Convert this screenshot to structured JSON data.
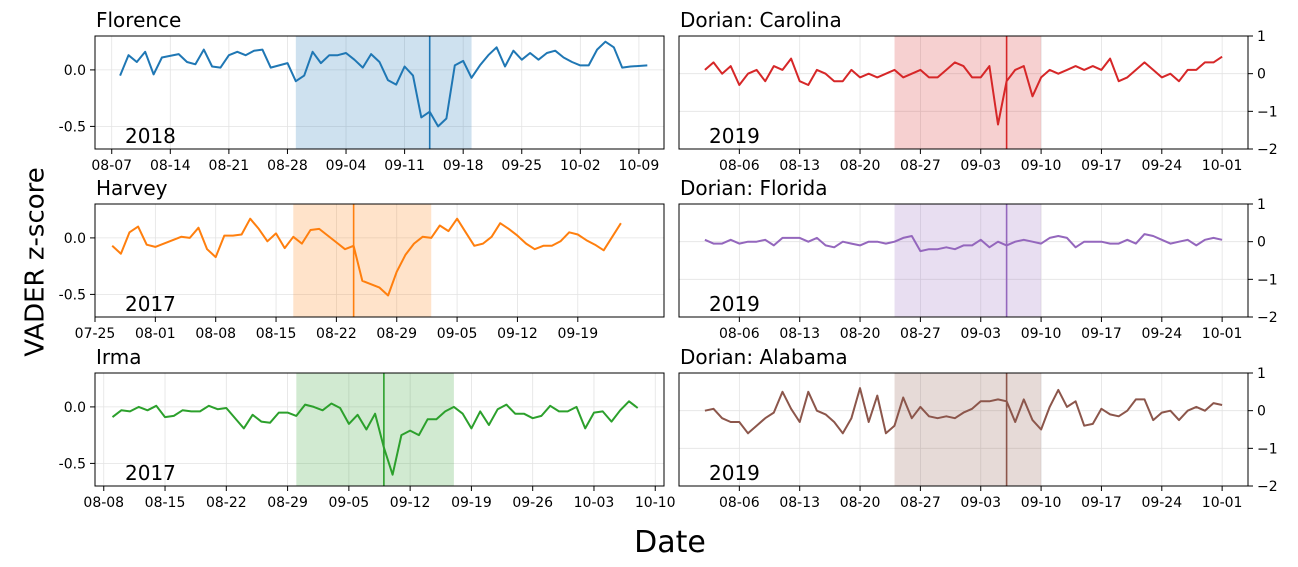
{
  "figure": {
    "xlabel": "Date",
    "ylabel": "VADER z-score"
  },
  "colors": {
    "blue": "#1f77b4",
    "orange": "#ff7f0e",
    "green": "#2ca02c",
    "red": "#d62728",
    "purple": "#9467bd",
    "brown": "#8c564b"
  },
  "chart_data": [
    {
      "type": "line",
      "title": "Florence",
      "year_label": "2018",
      "color": "#1f77b4",
      "ylim": [
        -0.7,
        0.3
      ],
      "yticks": [
        0.0,
        -0.5
      ],
      "ytick_labels": [
        "0.0",
        "-0.5"
      ],
      "yaxis_side": "left",
      "xlim": [
        "2018-08-05",
        "2018-10-12"
      ],
      "xticks": [
        "2018-08-07",
        "2018-08-14",
        "2018-08-21",
        "2018-08-28",
        "2018-09-04",
        "2018-09-11",
        "2018-09-18",
        "2018-09-25",
        "2018-10-02",
        "2018-10-09"
      ],
      "xtick_labels": [
        "08-07",
        "08-14",
        "08-21",
        "08-28",
        "09-04",
        "09-11",
        "09-18",
        "09-25",
        "10-02",
        "10-09"
      ],
      "span": [
        "2018-08-29",
        "2018-09-19"
      ],
      "event": "2018-09-14",
      "x": [
        "2018-08-08",
        "2018-08-09",
        "2018-08-10",
        "2018-08-11",
        "2018-08-12",
        "2018-08-13",
        "2018-08-15",
        "2018-08-16",
        "2018-08-17",
        "2018-08-18",
        "2018-08-19",
        "2018-08-20",
        "2018-08-21",
        "2018-08-22",
        "2018-08-23",
        "2018-08-24",
        "2018-08-25",
        "2018-08-26",
        "2018-08-27",
        "2018-08-28",
        "2018-08-29",
        "2018-08-30",
        "2018-08-31",
        "2018-09-01",
        "2018-09-02",
        "2018-09-03",
        "2018-09-04",
        "2018-09-05",
        "2018-09-06",
        "2018-09-07",
        "2018-09-08",
        "2018-09-09",
        "2018-09-10",
        "2018-09-11",
        "2018-09-12",
        "2018-09-13",
        "2018-09-14",
        "2018-09-15",
        "2018-09-16",
        "2018-09-17",
        "2018-09-18",
        "2018-09-19",
        "2018-09-20",
        "2018-09-21",
        "2018-09-22",
        "2018-09-23",
        "2018-09-24",
        "2018-09-25",
        "2018-09-26",
        "2018-09-27",
        "2018-09-28",
        "2018-09-29",
        "2018-09-30",
        "2018-10-01",
        "2018-10-02",
        "2018-10-03",
        "2018-10-04",
        "2018-10-05",
        "2018-10-06",
        "2018-10-07",
        "2018-10-08",
        "2018-10-10"
      ],
      "y": [
        -0.05,
        0.13,
        0.07,
        0.16,
        -0.04,
        0.11,
        0.14,
        0.07,
        0.05,
        0.18,
        0.03,
        0.02,
        0.13,
        0.16,
        0.13,
        0.17,
        0.18,
        0.02,
        0.04,
        0.06,
        -0.1,
        -0.05,
        0.16,
        0.06,
        0.13,
        0.13,
        0.15,
        0.09,
        0.02,
        0.14,
        0.07,
        -0.09,
        -0.13,
        0.03,
        -0.05,
        -0.42,
        -0.37,
        -0.5,
        -0.43,
        0.04,
        0.08,
        -0.07,
        0.04,
        0.13,
        0.2,
        0.03,
        0.17,
        0.09,
        0.15,
        0.09,
        0.15,
        0.17,
        0.11,
        0.07,
        0.04,
        0.04,
        0.18,
        0.25,
        0.2,
        0.02,
        0.03,
        0.04
      ]
    },
    {
      "type": "line",
      "title": "Harvey",
      "year_label": "2017",
      "color": "#ff7f0e",
      "ylim": [
        -0.7,
        0.3
      ],
      "yticks": [
        0.0,
        -0.5
      ],
      "ytick_labels": [
        "0.0",
        "-0.5"
      ],
      "yaxis_side": "left",
      "xlim": [
        "2017-07-25",
        "2017-09-29"
      ],
      "xticks": [
        "2017-07-25",
        "2017-08-01",
        "2017-08-08",
        "2017-08-15",
        "2017-08-22",
        "2017-08-29",
        "2017-09-05",
        "2017-09-12",
        "2017-09-19"
      ],
      "xtick_labels": [
        "07-25",
        "08-01",
        "08-08",
        "08-15",
        "08-22",
        "08-29",
        "09-05",
        "09-12",
        "09-19"
      ],
      "span": [
        "2017-08-17",
        "2017-09-02"
      ],
      "event": "2017-08-24",
      "x": [
        "2017-07-27",
        "2017-07-28",
        "2017-07-29",
        "2017-07-30",
        "2017-07-31",
        "2017-08-01",
        "2017-08-03",
        "2017-08-04",
        "2017-08-05",
        "2017-08-06",
        "2017-08-07",
        "2017-08-08",
        "2017-08-09",
        "2017-08-10",
        "2017-08-11",
        "2017-08-12",
        "2017-08-13",
        "2017-08-14",
        "2017-08-15",
        "2017-08-16",
        "2017-08-17",
        "2017-08-18",
        "2017-08-19",
        "2017-08-20",
        "2017-08-22",
        "2017-08-23",
        "2017-08-24",
        "2017-08-25",
        "2017-08-26",
        "2017-08-27",
        "2017-08-28",
        "2017-08-29",
        "2017-08-30",
        "2017-08-31",
        "2017-09-01",
        "2017-09-02",
        "2017-09-03",
        "2017-09-04",
        "2017-09-05",
        "2017-09-06",
        "2017-09-07",
        "2017-09-08",
        "2017-09-09",
        "2017-09-10",
        "2017-09-11",
        "2017-09-12",
        "2017-09-13",
        "2017-09-14",
        "2017-09-15",
        "2017-09-16",
        "2017-09-17",
        "2017-09-18",
        "2017-09-19",
        "2017-09-20",
        "2017-09-21",
        "2017-09-22",
        "2017-09-24"
      ],
      "y": [
        -0.07,
        -0.14,
        0.05,
        0.1,
        -0.06,
        -0.08,
        -0.02,
        0.01,
        0.0,
        0.09,
        -0.1,
        -0.17,
        0.02,
        0.02,
        0.03,
        0.17,
        0.08,
        -0.03,
        0.04,
        -0.09,
        0.01,
        -0.05,
        0.07,
        0.08,
        -0.04,
        -0.1,
        -0.07,
        -0.38,
        -0.41,
        -0.44,
        -0.51,
        -0.3,
        -0.15,
        -0.05,
        0.01,
        0.0,
        0.11,
        0.06,
        0.17,
        0.05,
        -0.07,
        -0.05,
        0.01,
        0.13,
        0.08,
        0.02,
        -0.05,
        -0.1,
        -0.07,
        -0.07,
        -0.03,
        0.05,
        0.03,
        -0.02,
        -0.06,
        -0.11,
        0.13
      ]
    },
    {
      "type": "line",
      "title": "Irma",
      "year_label": "2017",
      "color": "#2ca02c",
      "ylim": [
        -0.7,
        0.3
      ],
      "yticks": [
        0.0,
        -0.5
      ],
      "ytick_labels": [
        "0.0",
        "-0.5"
      ],
      "yaxis_side": "left",
      "xlim": [
        "2017-08-07",
        "2017-10-11"
      ],
      "xticks": [
        "2017-08-08",
        "2017-08-15",
        "2017-08-22",
        "2017-08-29",
        "2017-09-05",
        "2017-09-12",
        "2017-09-19",
        "2017-09-26",
        "2017-10-03",
        "2017-10-10"
      ],
      "xtick_labels": [
        "08-08",
        "08-15",
        "08-22",
        "08-29",
        "09-05",
        "09-12",
        "09-19",
        "09-26",
        "10-03",
        "10-10"
      ],
      "span": [
        "2017-08-30",
        "2017-09-17"
      ],
      "event": "2017-09-09",
      "x": [
        "2017-08-09",
        "2017-08-10",
        "2017-08-11",
        "2017-08-12",
        "2017-08-13",
        "2017-08-14",
        "2017-08-15",
        "2017-08-16",
        "2017-08-17",
        "2017-08-18",
        "2017-08-19",
        "2017-08-20",
        "2017-08-21",
        "2017-08-22",
        "2017-08-24",
        "2017-08-25",
        "2017-08-26",
        "2017-08-27",
        "2017-08-28",
        "2017-08-29",
        "2017-08-30",
        "2017-08-31",
        "2017-09-01",
        "2017-09-02",
        "2017-09-03",
        "2017-09-04",
        "2017-09-05",
        "2017-09-06",
        "2017-09-07",
        "2017-09-08",
        "2017-09-09",
        "2017-09-10",
        "2017-09-11",
        "2017-09-12",
        "2017-09-13",
        "2017-09-14",
        "2017-09-15",
        "2017-09-16",
        "2017-09-17",
        "2017-09-18",
        "2017-09-19",
        "2017-09-20",
        "2017-09-21",
        "2017-09-22",
        "2017-09-23",
        "2017-09-24",
        "2017-09-25",
        "2017-09-26",
        "2017-09-27",
        "2017-09-28",
        "2017-09-29",
        "2017-09-30",
        "2017-10-01",
        "2017-10-02",
        "2017-10-03",
        "2017-10-04",
        "2017-10-05",
        "2017-10-06",
        "2017-10-07",
        "2017-10-08"
      ],
      "y": [
        -0.09,
        -0.03,
        -0.04,
        0.0,
        -0.03,
        0.01,
        -0.09,
        -0.08,
        -0.03,
        -0.04,
        -0.04,
        0.01,
        -0.02,
        -0.01,
        -0.19,
        -0.07,
        -0.13,
        -0.14,
        -0.05,
        -0.05,
        -0.08,
        0.02,
        0.0,
        -0.03,
        0.03,
        -0.01,
        -0.15,
        -0.07,
        -0.2,
        -0.06,
        -0.36,
        -0.6,
        -0.25,
        -0.21,
        -0.25,
        -0.11,
        -0.11,
        -0.04,
        0.0,
        -0.06,
        -0.19,
        -0.04,
        -0.16,
        -0.02,
        0.02,
        -0.06,
        -0.06,
        -0.1,
        -0.08,
        0.01,
        -0.04,
        -0.04,
        0.0,
        -0.19,
        -0.05,
        -0.04,
        -0.13,
        -0.03,
        0.05,
        -0.01
      ]
    },
    {
      "type": "line",
      "title": "Dorian: Carolina",
      "year_label": "2019",
      "color": "#d62728",
      "ylim": [
        -2,
        1
      ],
      "yticks": [
        1,
        0,
        -1,
        -2
      ],
      "ytick_labels": [
        "1",
        "0",
        "−1",
        "−2"
      ],
      "yaxis_side": "right",
      "xlim": [
        "2019-07-30",
        "2019-10-04"
      ],
      "xticks": [
        "2019-08-06",
        "2019-08-13",
        "2019-08-20",
        "2019-08-27",
        "2019-09-03",
        "2019-09-10",
        "2019-09-17",
        "2019-09-24",
        "2019-10-01"
      ],
      "xtick_labels": [
        "08-06",
        "08-13",
        "08-20",
        "08-27",
        "09-03",
        "09-10",
        "09-17",
        "09-24",
        "10-01"
      ],
      "span": [
        "2019-08-24",
        "2019-09-10"
      ],
      "event": "2019-09-06",
      "x": [
        "2019-08-02",
        "2019-08-03",
        "2019-08-04",
        "2019-08-05",
        "2019-08-06",
        "2019-08-07",
        "2019-08-08",
        "2019-08-09",
        "2019-08-10",
        "2019-08-11",
        "2019-08-12",
        "2019-08-13",
        "2019-08-14",
        "2019-08-15",
        "2019-08-16",
        "2019-08-17",
        "2019-08-18",
        "2019-08-19",
        "2019-08-20",
        "2019-08-21",
        "2019-08-22",
        "2019-08-23",
        "2019-08-24",
        "2019-08-25",
        "2019-08-26",
        "2019-08-27",
        "2019-08-28",
        "2019-08-29",
        "2019-08-30",
        "2019-08-31",
        "2019-09-01",
        "2019-09-02",
        "2019-09-03",
        "2019-09-04",
        "2019-09-05",
        "2019-09-06",
        "2019-09-07",
        "2019-09-08",
        "2019-09-09",
        "2019-09-10",
        "2019-09-11",
        "2019-09-12",
        "2019-09-13",
        "2019-09-14",
        "2019-09-15",
        "2019-09-16",
        "2019-09-17",
        "2019-09-18",
        "2019-09-19",
        "2019-09-20",
        "2019-09-21",
        "2019-09-22",
        "2019-09-23",
        "2019-09-24",
        "2019-09-25",
        "2019-09-26",
        "2019-09-27",
        "2019-09-28",
        "2019-09-29",
        "2019-09-30",
        "2019-10-01"
      ],
      "y": [
        0.1,
        0.3,
        0.0,
        0.2,
        -0.3,
        0.0,
        0.1,
        -0.2,
        0.2,
        0.1,
        0.4,
        -0.2,
        -0.3,
        0.1,
        0.0,
        -0.2,
        -0.2,
        0.1,
        -0.1,
        0.0,
        -0.1,
        0.0,
        0.1,
        -0.1,
        0.0,
        0.1,
        -0.1,
        -0.1,
        0.1,
        0.3,
        0.2,
        -0.1,
        -0.1,
        0.2,
        -1.35,
        -0.2,
        0.1,
        0.2,
        -0.6,
        -0.1,
        0.1,
        0.0,
        0.1,
        0.2,
        0.1,
        0.2,
        0.1,
        0.4,
        -0.2,
        -0.1,
        0.1,
        0.3,
        0.1,
        -0.1,
        0.0,
        -0.2,
        0.1,
        0.1,
        0.3,
        0.3,
        0.45
      ]
    },
    {
      "type": "line",
      "title": "Dorian: Florida",
      "year_label": "2019",
      "color": "#9467bd",
      "ylim": [
        -2,
        1
      ],
      "yticks": [
        1,
        0,
        -1,
        -2
      ],
      "ytick_labels": [
        "1",
        "0",
        "−1",
        "−2"
      ],
      "yaxis_side": "right",
      "xlim": [
        "2019-07-30",
        "2019-10-04"
      ],
      "xticks": [
        "2019-08-06",
        "2019-08-13",
        "2019-08-20",
        "2019-08-27",
        "2019-09-03",
        "2019-09-10",
        "2019-09-17",
        "2019-09-24",
        "2019-10-01"
      ],
      "xtick_labels": [
        "08-06",
        "08-13",
        "08-20",
        "08-27",
        "09-03",
        "09-10",
        "09-17",
        "09-24",
        "10-01"
      ],
      "span": [
        "2019-08-24",
        "2019-09-10"
      ],
      "event": "2019-09-06",
      "x": [
        "2019-08-02",
        "2019-08-03",
        "2019-08-04",
        "2019-08-05",
        "2019-08-06",
        "2019-08-07",
        "2019-08-08",
        "2019-08-09",
        "2019-08-10",
        "2019-08-11",
        "2019-08-12",
        "2019-08-13",
        "2019-08-14",
        "2019-08-15",
        "2019-08-16",
        "2019-08-17",
        "2019-08-18",
        "2019-08-19",
        "2019-08-20",
        "2019-08-21",
        "2019-08-22",
        "2019-08-23",
        "2019-08-24",
        "2019-08-25",
        "2019-08-26",
        "2019-08-27",
        "2019-08-28",
        "2019-08-29",
        "2019-08-30",
        "2019-08-31",
        "2019-09-01",
        "2019-09-02",
        "2019-09-03",
        "2019-09-04",
        "2019-09-05",
        "2019-09-06",
        "2019-09-07",
        "2019-09-08",
        "2019-09-09",
        "2019-09-10",
        "2019-09-11",
        "2019-09-12",
        "2019-09-13",
        "2019-09-14",
        "2019-09-15",
        "2019-09-16",
        "2019-09-17",
        "2019-09-18",
        "2019-09-19",
        "2019-09-20",
        "2019-09-21",
        "2019-09-22",
        "2019-09-23",
        "2019-09-24",
        "2019-09-25",
        "2019-09-26",
        "2019-09-27",
        "2019-09-28",
        "2019-09-29",
        "2019-09-30",
        "2019-10-01"
      ],
      "y": [
        0.05,
        -0.05,
        -0.05,
        0.05,
        -0.05,
        0.0,
        0.0,
        0.05,
        -0.1,
        0.1,
        0.1,
        0.1,
        0.0,
        0.1,
        -0.1,
        -0.15,
        0.0,
        -0.05,
        -0.1,
        0.0,
        0.0,
        -0.05,
        0.0,
        0.1,
        0.15,
        -0.25,
        -0.2,
        -0.2,
        -0.15,
        -0.2,
        -0.1,
        -0.1,
        0.05,
        -0.15,
        0.0,
        -0.1,
        0.0,
        0.05,
        0.0,
        -0.05,
        0.1,
        0.15,
        0.1,
        -0.15,
        0.0,
        0.0,
        0.0,
        -0.05,
        -0.05,
        0.05,
        -0.05,
        0.2,
        0.15,
        0.05,
        -0.05,
        0.0,
        0.05,
        -0.1,
        0.05,
        0.1,
        0.05
      ]
    },
    {
      "type": "line",
      "title": "Dorian: Alabama",
      "year_label": "2019",
      "color": "#8c564b",
      "ylim": [
        -2,
        1
      ],
      "yticks": [
        1,
        0,
        -1,
        -2
      ],
      "ytick_labels": [
        "1",
        "0",
        "−1",
        "−2"
      ],
      "yaxis_side": "right",
      "xlim": [
        "2019-07-30",
        "2019-10-04"
      ],
      "xticks": [
        "2019-08-06",
        "2019-08-13",
        "2019-08-20",
        "2019-08-27",
        "2019-09-03",
        "2019-09-10",
        "2019-09-17",
        "2019-09-24",
        "2019-10-01"
      ],
      "xtick_labels": [
        "08-06",
        "08-13",
        "08-20",
        "08-27",
        "09-03",
        "09-10",
        "09-17",
        "09-24",
        "10-01"
      ],
      "span": [
        "2019-08-24",
        "2019-09-10"
      ],
      "event": "2019-09-06",
      "x": [
        "2019-08-02",
        "2019-08-03",
        "2019-08-04",
        "2019-08-05",
        "2019-08-06",
        "2019-08-07",
        "2019-08-08",
        "2019-08-09",
        "2019-08-10",
        "2019-08-11",
        "2019-08-12",
        "2019-08-13",
        "2019-08-14",
        "2019-08-15",
        "2019-08-16",
        "2019-08-17",
        "2019-08-18",
        "2019-08-19",
        "2019-08-20",
        "2019-08-21",
        "2019-08-22",
        "2019-08-23",
        "2019-08-24",
        "2019-08-25",
        "2019-08-26",
        "2019-08-27",
        "2019-08-28",
        "2019-08-29",
        "2019-08-30",
        "2019-08-31",
        "2019-09-01",
        "2019-09-02",
        "2019-09-03",
        "2019-09-04",
        "2019-09-05",
        "2019-09-06",
        "2019-09-07",
        "2019-09-08",
        "2019-09-09",
        "2019-09-10",
        "2019-09-11",
        "2019-09-12",
        "2019-09-13",
        "2019-09-14",
        "2019-09-15",
        "2019-09-16",
        "2019-09-17",
        "2019-09-18",
        "2019-09-19",
        "2019-09-20",
        "2019-09-21",
        "2019-09-22",
        "2019-09-23",
        "2019-09-24",
        "2019-09-25",
        "2019-09-26",
        "2019-09-27",
        "2019-09-28",
        "2019-09-29",
        "2019-09-30",
        "2019-10-01"
      ],
      "y": [
        0.0,
        0.05,
        -0.2,
        -0.3,
        -0.3,
        -0.6,
        -0.4,
        -0.2,
        -0.05,
        0.5,
        0.05,
        -0.3,
        0.5,
        0.0,
        -0.1,
        -0.3,
        -0.6,
        -0.2,
        0.6,
        -0.3,
        0.4,
        -0.6,
        -0.4,
        0.35,
        -0.2,
        0.1,
        -0.15,
        -0.2,
        -0.15,
        -0.2,
        -0.05,
        0.05,
        0.25,
        0.25,
        0.3,
        0.25,
        -0.3,
        0.3,
        -0.25,
        -0.5,
        0.1,
        0.55,
        0.1,
        0.25,
        -0.4,
        -0.35,
        0.05,
        -0.1,
        -0.15,
        0.0,
        0.3,
        0.3,
        -0.25,
        -0.05,
        0.0,
        -0.25,
        0.0,
        0.1,
        0.0,
        0.2,
        0.15
      ]
    }
  ]
}
